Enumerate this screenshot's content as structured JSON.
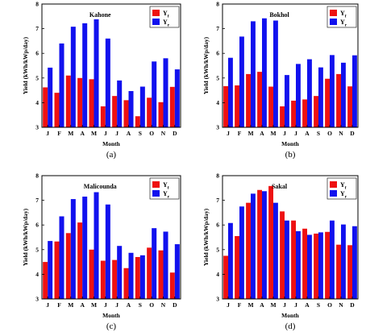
{
  "chart_data": [
    {
      "type": "bar",
      "title": "Kahone",
      "caption": "(a)",
      "xlabel": "Month",
      "ylabel": "Yield (kWh/kWp/day)",
      "ylim": [
        3,
        8
      ],
      "yticks": [
        3,
        4,
        5,
        6,
        7,
        8
      ],
      "legend_position": "top-right",
      "categories": [
        "J",
        "F",
        "M",
        "A",
        "M",
        "J",
        "J",
        "A",
        "S",
        "O",
        "N",
        "D"
      ],
      "series": [
        {
          "name": "Y",
          "sub": "f",
          "color": "#ee1111",
          "values": [
            4.62,
            4.4,
            5.1,
            5.0,
            4.95,
            3.85,
            4.27,
            4.1,
            3.45,
            4.2,
            4.02,
            4.64
          ]
        },
        {
          "name": "Y",
          "sub": "r",
          "color": "#1111ee",
          "values": [
            5.42,
            6.4,
            7.08,
            7.22,
            7.38,
            6.6,
            4.9,
            4.47,
            4.65,
            5.67,
            5.8,
            5.35
          ]
        }
      ]
    },
    {
      "type": "bar",
      "title": "Bokhol",
      "caption": "(b)",
      "xlabel": "Month",
      "ylabel": "Yield (kWh/kWp/day)",
      "ylim": [
        3,
        8
      ],
      "yticks": [
        3,
        4,
        5,
        6,
        7,
        8
      ],
      "legend_position": "top-right",
      "categories": [
        "J",
        "F",
        "M",
        "A",
        "M",
        "J",
        "J",
        "A",
        "S",
        "O",
        "N",
        "D"
      ],
      "series": [
        {
          "name": "Y",
          "sub": "f",
          "color": "#ee1111",
          "values": [
            4.67,
            4.7,
            5.16,
            5.25,
            4.65,
            3.85,
            4.08,
            4.13,
            4.27,
            4.97,
            5.16,
            4.66
          ]
        },
        {
          "name": "Y",
          "sub": "r",
          "color": "#1111ee",
          "values": [
            5.82,
            6.68,
            7.3,
            7.42,
            7.33,
            5.12,
            5.57,
            5.76,
            5.43,
            5.93,
            5.62,
            5.92
          ]
        }
      ]
    },
    {
      "type": "bar",
      "title": "Malicounda",
      "caption": "(c)",
      "xlabel": "Month",
      "ylabel": "Yield (kWh/kWp/day)",
      "ylim": [
        3,
        8
      ],
      "yticks": [
        3,
        4,
        5,
        6,
        7,
        8
      ],
      "legend_position": "top-right",
      "categories": [
        "J",
        "F",
        "M",
        "A",
        "M",
        "J",
        "J",
        "A",
        "S",
        "O",
        "N",
        "D"
      ],
      "series": [
        {
          "name": "Y",
          "sub": "f",
          "color": "#ee1111",
          "values": [
            4.5,
            5.33,
            5.67,
            6.1,
            5.0,
            4.55,
            4.58,
            4.25,
            4.7,
            5.08,
            4.97,
            4.07
          ]
        },
        {
          "name": "Y",
          "sub": "r",
          "color": "#1111ee",
          "values": [
            5.35,
            6.35,
            7.05,
            7.15,
            7.33,
            6.83,
            5.15,
            4.87,
            4.77,
            5.87,
            5.73,
            5.22
          ]
        }
      ]
    },
    {
      "type": "bar",
      "title": "Sakal",
      "caption": "(d)",
      "xlabel": "Month",
      "ylabel": "Yield (kWh/kWp/day)",
      "ylim": [
        3,
        8
      ],
      "yticks": [
        3,
        4,
        5,
        6,
        7,
        8
      ],
      "legend_position": "top-right",
      "categories": [
        "J",
        "F",
        "M",
        "A",
        "M",
        "J",
        "J",
        "A",
        "S",
        "O",
        "N",
        "D"
      ],
      "series": [
        {
          "name": "Y",
          "sub": "f",
          "color": "#ee1111",
          "values": [
            4.75,
            5.55,
            6.9,
            7.42,
            7.58,
            6.55,
            6.18,
            5.85,
            5.65,
            5.72,
            5.2,
            5.18
          ]
        },
        {
          "name": "Y",
          "sub": "r",
          "color": "#1111ee",
          "values": [
            6.08,
            6.75,
            7.27,
            7.37,
            6.9,
            6.18,
            5.75,
            5.6,
            5.7,
            6.18,
            6.02,
            5.95
          ]
        }
      ]
    }
  ]
}
